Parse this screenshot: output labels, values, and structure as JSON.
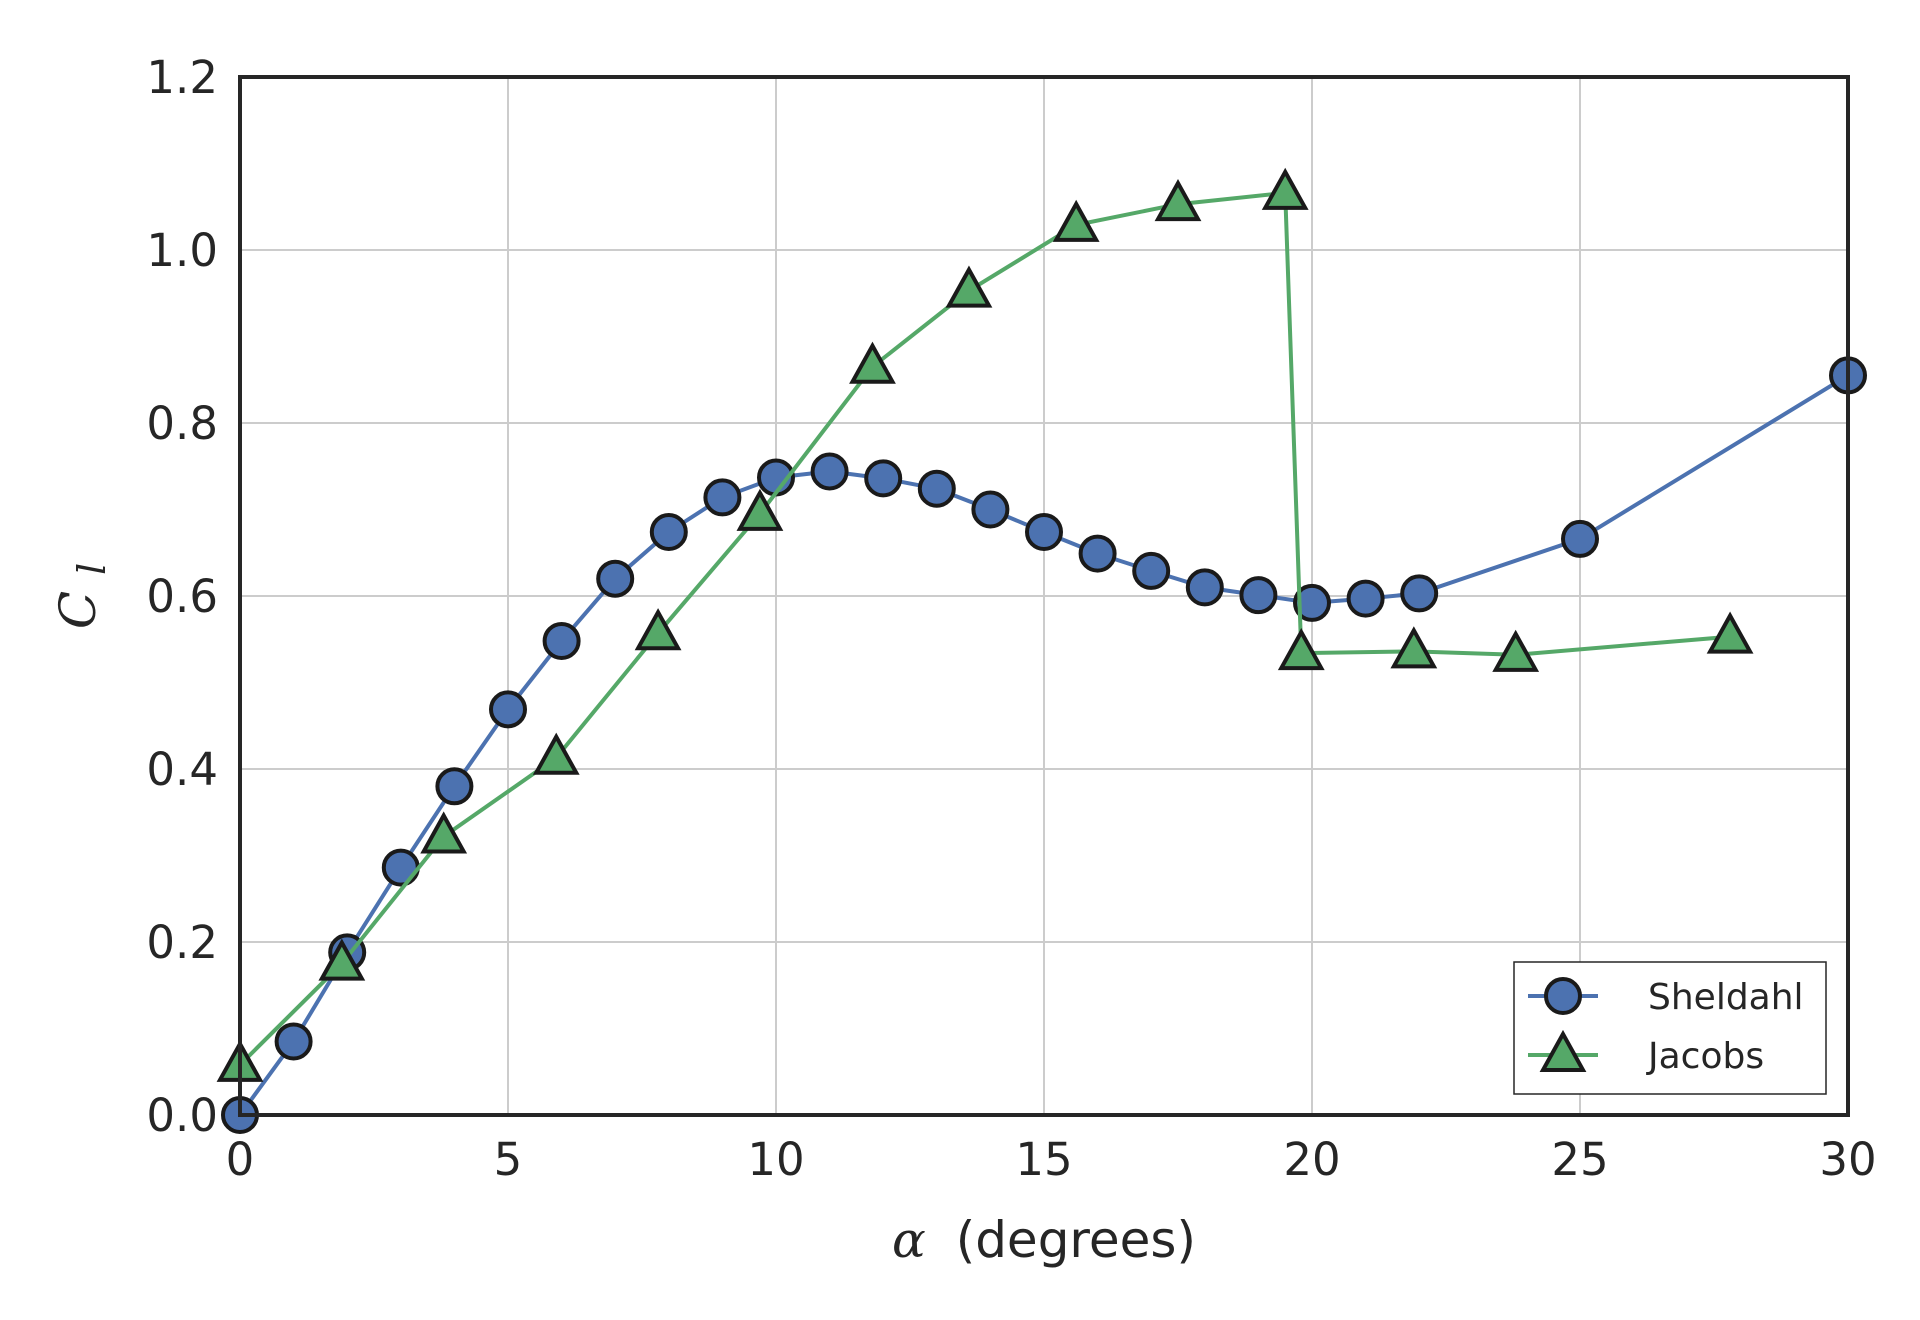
{
  "chart_data": {
    "type": "line",
    "title": "",
    "xlabel_symbol": "α",
    "xlabel": "(degrees)",
    "ylabel": "C",
    "ylabel_subscript": "l",
    "xlim": [
      0,
      30
    ],
    "ylim": [
      0,
      1.2
    ],
    "xticks": [
      0,
      5,
      10,
      15,
      20,
      25,
      30
    ],
    "xtick_labels": [
      "0",
      "5",
      "10",
      "15",
      "20",
      "25",
      "30"
    ],
    "yticks": [
      0.0,
      0.2,
      0.4,
      0.6,
      0.8,
      1.0,
      1.2
    ],
    "ytick_labels": [
      "0.0",
      "0.2",
      "0.4",
      "0.6",
      "0.8",
      "1.0",
      "1.2"
    ],
    "grid": true,
    "legend_position": "bottom-right",
    "series": [
      {
        "name": "Sheldahl",
        "marker": "circle",
        "color": "#4c72b0",
        "x": [
          0,
          1,
          2,
          3,
          4,
          5,
          6,
          7,
          8,
          9,
          10,
          11,
          12,
          13,
          14,
          15,
          16,
          17,
          18,
          19,
          20,
          21,
          22,
          25,
          30
        ],
        "y": [
          0.0,
          0.085,
          0.188,
          0.286,
          0.38,
          0.469,
          0.548,
          0.62,
          0.674,
          0.714,
          0.737,
          0.744,
          0.736,
          0.724,
          0.7,
          0.674,
          0.649,
          0.629,
          0.61,
          0.601,
          0.592,
          0.597,
          0.603,
          0.666,
          0.855
        ]
      },
      {
        "name": "Jacobs",
        "marker": "triangle",
        "color": "#55a868",
        "x": [
          0.0,
          1.9,
          3.8,
          5.9,
          7.8,
          9.7,
          11.8,
          13.6,
          15.6,
          17.5,
          19.5,
          19.8,
          21.9,
          23.8,
          27.8
        ],
        "y": [
          0.058,
          0.175,
          0.322,
          0.413,
          0.557,
          0.695,
          0.865,
          0.953,
          1.029,
          1.053,
          1.066,
          0.534,
          0.536,
          0.532,
          0.553
        ]
      }
    ]
  }
}
